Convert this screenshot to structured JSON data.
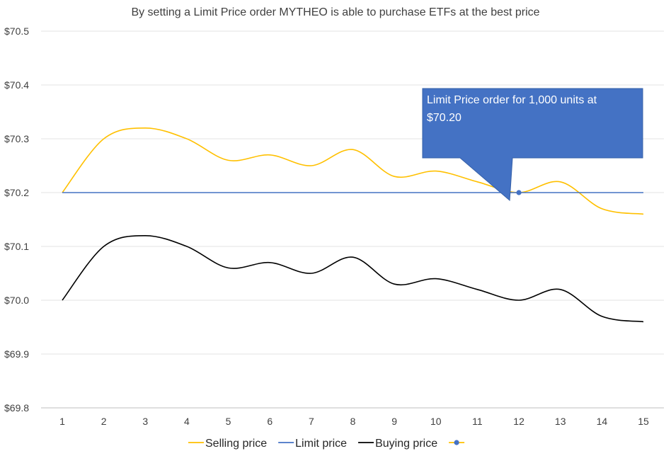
{
  "chart_data": {
    "type": "line",
    "title": "By setting a Limit Price order MYTHEO is able to purchase ETFs at the best price",
    "xlabel": "",
    "ylabel": "",
    "x": [
      1,
      2,
      3,
      4,
      5,
      6,
      7,
      8,
      9,
      10,
      11,
      12,
      13,
      14,
      15
    ],
    "ylim": [
      69.8,
      70.5
    ],
    "ytick_values": [
      69.8,
      69.9,
      70.0,
      70.1,
      70.2,
      70.3,
      70.4,
      70.5
    ],
    "ytick_labels": [
      "$69.8",
      "$69.9",
      "$70.0",
      "$70.1",
      "$70.2",
      "$70.3",
      "$70.4",
      "$70.5"
    ],
    "grid": "horizontal",
    "legend_position": "bottom",
    "series": [
      {
        "name": "Selling price",
        "color": "#FFC000",
        "smooth": true,
        "values": [
          70.2,
          70.3,
          70.32,
          70.3,
          70.26,
          70.27,
          70.25,
          70.28,
          70.23,
          70.24,
          70.22,
          70.2,
          70.22,
          70.17,
          70.16
        ]
      },
      {
        "name": "Limit price",
        "color": "#4472C4",
        "smooth": false,
        "values": [
          70.2,
          70.2,
          70.2,
          70.2,
          70.2,
          70.2,
          70.2,
          70.2,
          70.2,
          70.2,
          70.2,
          70.2,
          70.2,
          70.2,
          70.2
        ]
      },
      {
        "name": "Buying price",
        "color": "#000000",
        "smooth": true,
        "values": [
          70.0,
          70.1,
          70.12,
          70.1,
          70.06,
          70.07,
          70.05,
          70.08,
          70.03,
          70.04,
          70.02,
          70.0,
          70.02,
          69.97,
          69.96
        ]
      },
      {
        "name": "",
        "color": "#4472C4",
        "marker": true,
        "legend_color": "#FFC000",
        "points": [
          {
            "x": 12,
            "y": 70.2
          }
        ]
      }
    ],
    "annotation": {
      "text_lines": [
        "Limit Price order for 1,000 units at",
        "$70.20"
      ],
      "fill": "#4472C4",
      "points_to": {
        "x": 12,
        "y": 70.2
      }
    }
  }
}
